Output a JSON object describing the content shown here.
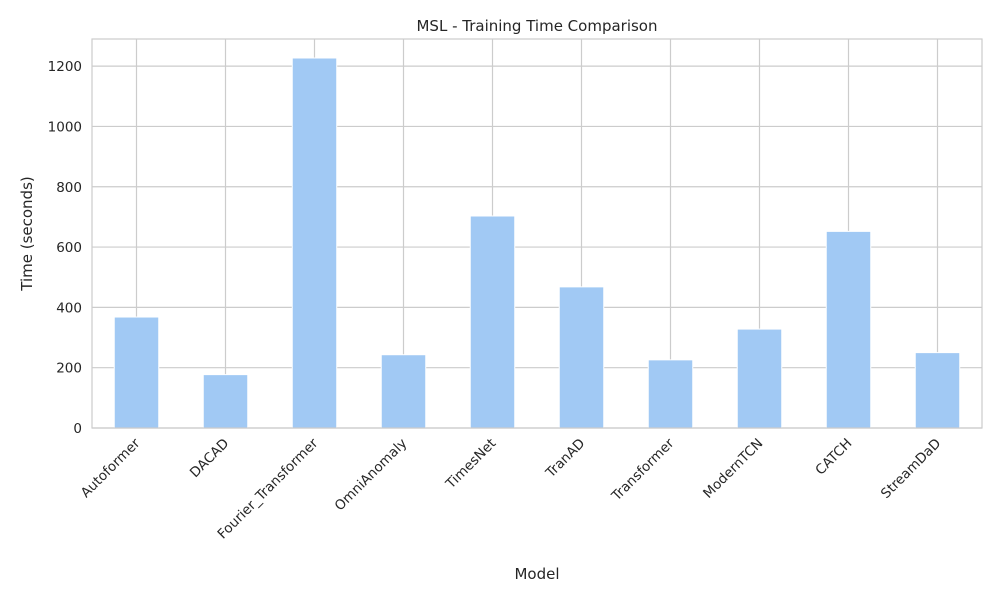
{
  "chart_data": {
    "type": "bar",
    "title": "MSL - Training Time Comparison",
    "xlabel": "Model",
    "ylabel": "Time (seconds)",
    "categories": [
      "Autoformer",
      "DACAD",
      "Fourier_Transformer",
      "OmniAnomaly",
      "TimesNet",
      "TranAD",
      "Transformer",
      "ModernTCN",
      "CATCH",
      "StreamDaD"
    ],
    "values": [
      368,
      177,
      1227,
      243,
      703,
      468,
      226,
      328,
      652,
      250
    ],
    "ylim": [
      0,
      1290
    ],
    "yticks": [
      0,
      200,
      400,
      600,
      800,
      1000,
      1200
    ],
    "grid": true,
    "bar_color": "#a1c9f4",
    "grid_color": "#cccccc",
    "legend": "none"
  }
}
